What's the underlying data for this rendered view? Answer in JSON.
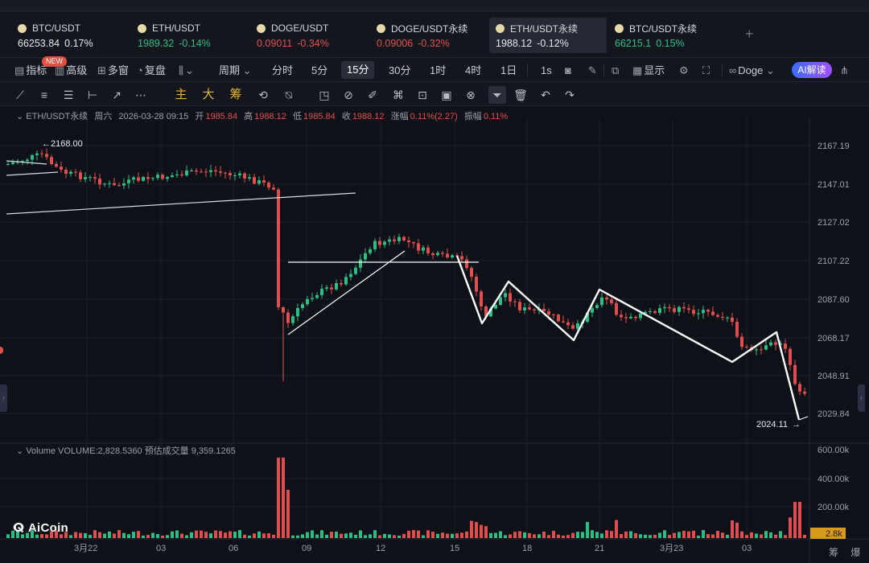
{
  "tickers": [
    {
      "name": "BTC/USDT",
      "price": "66253.84",
      "change": "0.17%",
      "price_color": "neutral",
      "change_color": "neutral"
    },
    {
      "name": "ETH/USDT",
      "price": "1989.32",
      "change": "-0.14%",
      "price_color": "up",
      "change_color": "up"
    },
    {
      "name": "DOGE/USDT",
      "price": "0.09011",
      "change": "-0.34%",
      "price_color": "down",
      "change_color": "down"
    },
    {
      "name": "DOGE/USDT永续",
      "price": "0.09006",
      "change": "-0.32%",
      "price_color": "down",
      "change_color": "down"
    },
    {
      "name": "ETH/USDT永续",
      "price": "1988.12",
      "change": "-0.12%",
      "price_color": "neutral",
      "change_color": "neutral"
    },
    {
      "name": "BTC/USDT永续",
      "price": "66215.1",
      "change": "0.15%",
      "price_color": "up",
      "change_color": "up"
    }
  ],
  "add_tab": "+",
  "toolbar": {
    "indicators": "指标",
    "new_badge": "NEW",
    "advanced": "高级",
    "multi_window": "多窗",
    "replay": "复盘",
    "period": "周期",
    "periods": [
      "分时",
      "5分",
      "15分",
      "30分",
      "1时",
      "4时",
      "1日"
    ],
    "selected_period": "15分",
    "one_sec": "1s",
    "display": "显示",
    "coin_select": "Doge",
    "ai_button": "AI解读"
  },
  "drawing_tools": {
    "main": "主",
    "big": "大",
    "chip": "筹"
  },
  "info": {
    "symbol": "ETH/USDT永续",
    "weekday": "周六",
    "datetime": "2026-03-28 09:15",
    "open_label": "开",
    "open": "1985.84",
    "high_label": "高",
    "high": "1988.12",
    "low_label": "低",
    "low": "1985.84",
    "close_label": "收",
    "close": "1988.12",
    "change_label": "涨幅",
    "change": "0.11%(2.27)",
    "amplitude_label": "振幅",
    "amplitude": "0.11%"
  },
  "volume_info": {
    "label": "Volume",
    "value": "VOLUME:2,828.5360",
    "estimate_label": "预估成交量",
    "estimate": "9,359.1265"
  },
  "price_axis": [
    "2167.19",
    "2147.01",
    "2127.02",
    "2107.22",
    "2087.60",
    "2068.17",
    "2048.91",
    "2029.84"
  ],
  "volume_axis": [
    "600.00k",
    "400.00k",
    "200.00k"
  ],
  "volume_current": "2.8k",
  "time_axis": [
    "3月22",
    "03",
    "06",
    "09",
    "12",
    "15",
    "18",
    "21",
    "3月23",
    "03"
  ],
  "annotations": {
    "high_marker": "2168.00",
    "low_marker": "2024.11"
  },
  "logo": "AiCoin",
  "bottom_right": "筹 爆",
  "colors": {
    "up": "#2ebd85",
    "down": "#e04f4f",
    "accent": "#3b6dff",
    "background": "#0f1118"
  }
}
